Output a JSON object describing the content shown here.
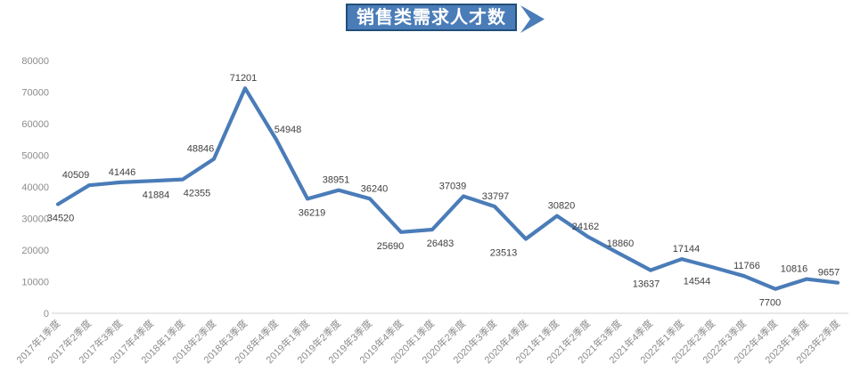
{
  "title_banner": {
    "text": "销售类需求人才数",
    "fill": "#4A7CB8",
    "border": "#1F4E79",
    "text_color": "#FFFFFF"
  },
  "chart_data": {
    "type": "line",
    "title": "销售类需求人才数",
    "categories": [
      "2017年1季度",
      "2017年2季度",
      "2017年3季度",
      "2017年4季度",
      "2018年1季度",
      "2018年2季度",
      "2018年3季度",
      "2018年4季度",
      "2019年1季度",
      "2019年2季度",
      "2019年3季度",
      "2019年4季度",
      "2020年1季度",
      "2020年2季度",
      "2020年3季度",
      "2020年4季度",
      "2021年1季度",
      "2021年2季度",
      "2021年3季度",
      "2021年4季度",
      "2022年1季度",
      "2022年2季度",
      "2022年3季度",
      "2022年4季度",
      "2023年1季度",
      "2023年2季度"
    ],
    "values": [
      34520,
      40509,
      41446,
      41884,
      42355,
      48846,
      71201,
      54948,
      36219,
      38951,
      36240,
      25690,
      26483,
      37039,
      33797,
      23513,
      30820,
      24162,
      18860,
      13637,
      17144,
      14544,
      11766,
      7700,
      10816,
      9657
    ],
    "ylim": [
      0,
      80000
    ],
    "ytick_step": 10000,
    "yticks": [
      0,
      10000,
      20000,
      30000,
      40000,
      50000,
      60000,
      70000,
      80000
    ],
    "grid": false,
    "legend": "none",
    "xlabel": "",
    "ylabel": "",
    "line_color": "#4A7CB8",
    "data_label_color": "#3F3F3F",
    "tick_label_color": "#8C8C8C",
    "axis_line_color": "#D9D9D9",
    "label_positions": [
      "below",
      "above",
      "above",
      "below",
      "below",
      "above",
      "above",
      "above",
      "below",
      "above",
      "above",
      "below",
      "below",
      "above",
      "above",
      "below",
      "above",
      "above",
      "above",
      "below",
      "above",
      "below",
      "above",
      "below",
      "above",
      "above"
    ],
    "label_dx": [
      3,
      -15,
      2,
      5,
      16,
      -15,
      -2,
      13,
      5,
      -3,
      5,
      -12,
      9,
      -12,
      1,
      -25,
      5,
      -3,
      1,
      -5,
      5,
      -18,
      3,
      -6,
      -14,
      -10
    ]
  }
}
